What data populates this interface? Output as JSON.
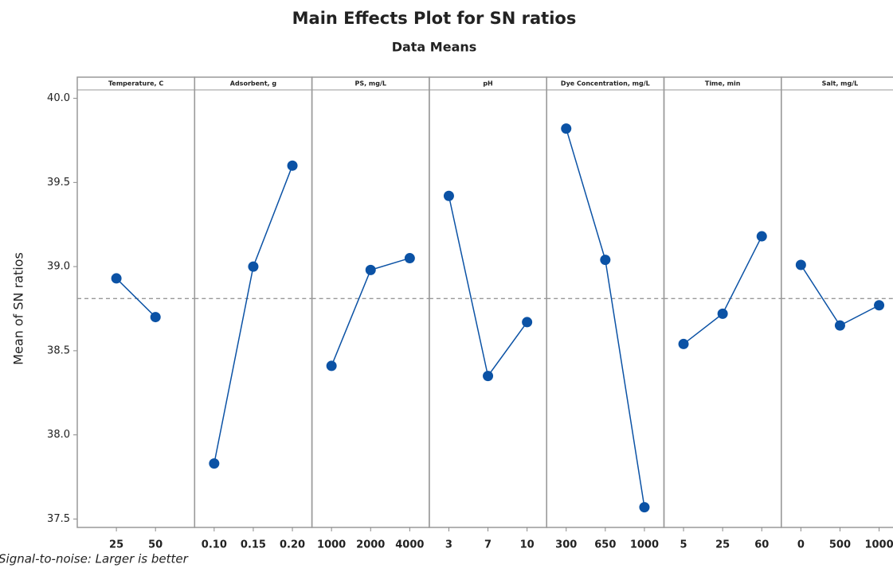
{
  "chart_data": {
    "type": "line",
    "title": "Main Effects Plot for SN ratios",
    "subtitle": "Data Means",
    "ylabel": "Mean of SN ratios",
    "footnote": "Signal-to-noise: Larger is better",
    "color": "#0b52a5",
    "reference": 38.81,
    "ylim": [
      37.45,
      40.05
    ],
    "yticks": [
      {
        "value": 37.5,
        "label": "37.5"
      },
      {
        "value": 38,
        "label": "38.0"
      },
      {
        "value": 38.5,
        "label": "38.5"
      },
      {
        "value": 39,
        "label": "39.0"
      },
      {
        "value": 39.5,
        "label": "39.5"
      },
      {
        "value": 40,
        "label": "40.0"
      }
    ],
    "panels": [
      {
        "name": "Temperature, C",
        "categories": [
          "25",
          "50"
        ],
        "values": [
          38.93,
          38.7
        ]
      },
      {
        "name": "Adsorbent, g",
        "categories": [
          "0.10",
          "0.15",
          "0.20"
        ],
        "values": [
          37.83,
          39.0,
          39.6
        ]
      },
      {
        "name": "PS, mg/L",
        "categories": [
          "1000",
          "2000",
          "4000"
        ],
        "values": [
          38.41,
          38.98,
          39.05
        ]
      },
      {
        "name": "pH",
        "categories": [
          "3",
          "7",
          "10"
        ],
        "values": [
          39.42,
          38.35,
          38.67
        ]
      },
      {
        "name": "Dye Concentration, mg/L",
        "categories": [
          "300",
          "650",
          "1000"
        ],
        "values": [
          39.82,
          39.04,
          37.57
        ]
      },
      {
        "name": "Time, min",
        "categories": [
          "5",
          "25",
          "60"
        ],
        "values": [
          38.54,
          38.72,
          39.18
        ]
      },
      {
        "name": "Salt, mg/L",
        "categories": [
          "0",
          "500",
          "1000"
        ],
        "values": [
          39.01,
          38.65,
          38.77
        ]
      }
    ]
  }
}
